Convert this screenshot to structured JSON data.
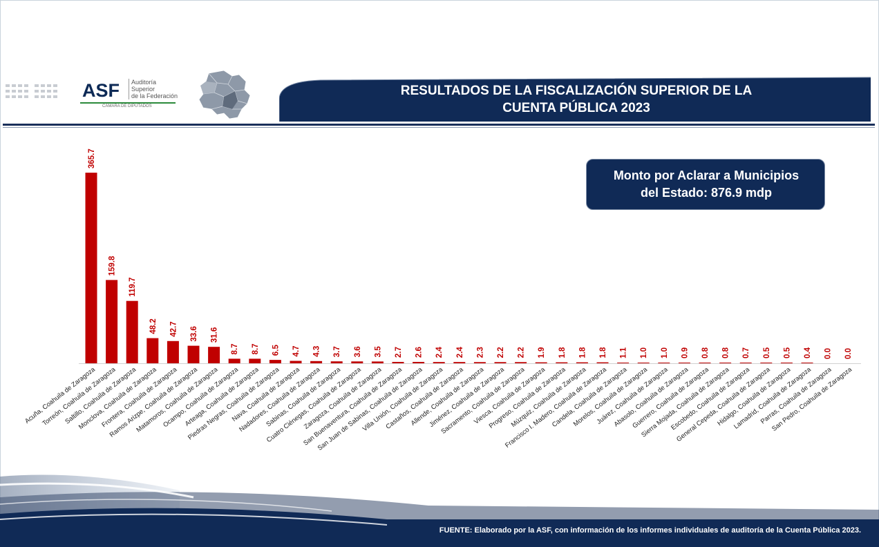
{
  "header": {
    "logo_mark": "ASF",
    "logo_name_lines": [
      "Auditoría",
      "Superior",
      "de la Federación"
    ],
    "logo_subtitle": "CÁMARA DE DIPUTADOS",
    "title_line1": "RESULTADOS DE LA FISCALIZACIÓN SUPERIOR DE LA",
    "title_line2": "CUENTA PÚBLICA 2023"
  },
  "summary": {
    "line1": "Monto por Aclarar a Municipios",
    "line2": "del Estado: 876.9 mdp"
  },
  "footer": {
    "source": "FUENTE: Elaborado por la ASF, con información de los informes individuales de auditoría de la Cuenta Pública 2023."
  },
  "colors": {
    "bar": "#c00000",
    "label": "#c00000",
    "navy": "#102a56"
  },
  "chart_data": {
    "type": "bar",
    "title": "",
    "xlabel": "",
    "ylabel": "",
    "ylim": [
      0,
      365.7
    ],
    "grid": false,
    "legend": "none",
    "categories": [
      "Acuña, Coahuila de Zaragoza",
      "Torreón, Coahuila de Zaragoza",
      "Saltillo, Coahuila de Zaragoza",
      "Monclova, Coahuila de Zaragoza",
      "Frontera, Coahuila de Zaragoza",
      "Ramos Arizpe, Coahuila de Zaragoza",
      "Matamoros, Coahuila de Zaragoza",
      "Ocampo, Coahuila de Zaragoza",
      "Arteaga, Coahuila de Zaragoza",
      "Piedras Negras, Coahuila de Zaragoza",
      "Nava, Coahuila de Zaragoza",
      "Nadadores, Coahuila de Zaragoza",
      "Sabinas, Coahuila de Zaragoza",
      "Cuatro Ciénegas, Coahuila de Zaragoza",
      "Zaragoza, Coahuila de Zaragoza",
      "San Buenaventura, Coahuila de Zaragoza",
      "San Juan de Sabinas, Coahuila de Zaragoza",
      "Villa Unión, Coahuila de Zaragoza",
      "Castaños, Coahuila de Zaragoza",
      "Allende, Coahuila de Zaragoza",
      "Jiménez, Coahuila de Zaragoza",
      "Sacramento, Coahuila de Zaragoza",
      "Viesca, Coahuila de Zaragoza",
      "Progreso, Coahuila de Zaragoza",
      "Múzquiz, Coahuila de Zaragoza",
      "Francisco I. Madero, Coahuila de Zaragoza",
      "Candela, Coahuila de Zaragoza",
      "Morelos, Coahuila de Zaragoza",
      "Juárez, Coahuila de Zaragoza",
      "Abasolo, Coahuila de Zaragoza",
      "Guerrero, Coahuila de Zaragoza",
      "Sierra Mojada, Coahuila de Zaragoza",
      "Escobedo, Coahuila de Zaragoza",
      "General Cepeda, Coahuila de Zaragoza",
      "Hidalgo, Coahuila de Zaragoza",
      "Lamadrid, Coahuila de Zaragoza",
      "Parras, Coahuila de Zaragoza",
      "San Pedro, Coahuila de Zaragoza"
    ],
    "values": [
      365.7,
      159.8,
      119.7,
      48.2,
      42.7,
      33.6,
      31.6,
      8.7,
      8.7,
      6.5,
      4.7,
      4.3,
      3.7,
      3.6,
      3.5,
      2.7,
      2.6,
      2.4,
      2.4,
      2.3,
      2.2,
      2.2,
      1.9,
      1.8,
      1.8,
      1.8,
      1.1,
      1.0,
      1.0,
      0.9,
      0.8,
      0.8,
      0.7,
      0.5,
      0.5,
      0.4,
      0.0,
      0.0
    ],
    "value_labels": [
      "365.7",
      "159.8",
      "119.7",
      "48.2",
      "42.7",
      "33.6",
      "31.6",
      "8.7",
      "8.7",
      "6.5",
      "4.7",
      "4.3",
      "3.7",
      "3.6",
      "3.5",
      "2.7",
      "2.6",
      "2.4",
      "2.4",
      "2.3",
      "2.2",
      "2.2",
      "1.9",
      "1.8",
      "1.8",
      "1.8",
      "1.1",
      "1.0",
      "1.0",
      "0.9",
      "0.8",
      "0.8",
      "0.7",
      "0.5",
      "0.5",
      "0.4",
      "0.0",
      "0.0"
    ]
  }
}
